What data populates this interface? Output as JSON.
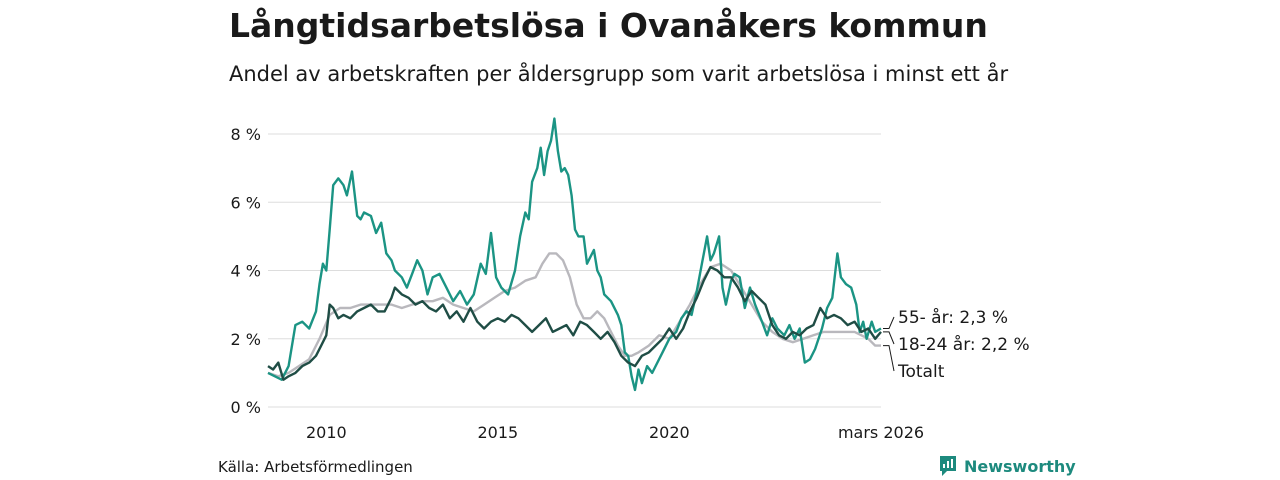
{
  "header": {
    "title": "Långtidsarbetslösa i Ovanåkers kommun",
    "subtitle": "Andel av arbetskraften per åldersgrupp som varit arbetslösa i minst ett år"
  },
  "footer": {
    "source": "Källa: Arbetsförmedlingen",
    "brand": "Newsworthy"
  },
  "colors": {
    "series_55": "#1b9484",
    "series_18_24": "#1f4d45",
    "series_total": "#b9b8bd",
    "grid": "#dddddd",
    "brand": "#1d8a7e"
  },
  "icons": {
    "brand_logo": "newsworthy-logo-icon"
  },
  "chart_data": {
    "type": "line",
    "title": "Långtidsarbetslösa i Ovanåkers kommun",
    "subtitle": "Andel av arbetskraften per åldersgrupp som varit arbetslösa i minst ett år",
    "xlabel": "",
    "ylabel": "",
    "x_range": [
      2008.3,
      2026.17
    ],
    "ylim": [
      0,
      8.5
    ],
    "y_ticks": [
      0,
      2,
      4,
      6,
      8
    ],
    "y_tick_labels": [
      "0 %",
      "2 %",
      "4 %",
      "6 %",
      "8 %"
    ],
    "x_ticks": [
      2010,
      2015,
      2020,
      2026.17
    ],
    "x_tick_labels": [
      "2010",
      "2015",
      "2020",
      "mars 2026"
    ],
    "grid": true,
    "series": [
      {
        "name": "55- år",
        "end_label": "55- år: 2,3 %",
        "color": "#1b9484",
        "points": [
          [
            2008.3,
            1.0
          ],
          [
            2008.5,
            0.9
          ],
          [
            2008.7,
            0.8
          ],
          [
            2008.9,
            1.2
          ],
          [
            2009.1,
            2.4
          ],
          [
            2009.3,
            2.5
          ],
          [
            2009.5,
            2.3
          ],
          [
            2009.7,
            2.8
          ],
          [
            2009.8,
            3.6
          ],
          [
            2009.9,
            4.2
          ],
          [
            2010.0,
            4.0
          ],
          [
            2010.1,
            5.2
          ],
          [
            2010.2,
            6.5
          ],
          [
            2010.35,
            6.7
          ],
          [
            2010.5,
            6.5
          ],
          [
            2010.6,
            6.2
          ],
          [
            2010.75,
            6.9
          ],
          [
            2010.9,
            5.6
          ],
          [
            2011.0,
            5.5
          ],
          [
            2011.1,
            5.7
          ],
          [
            2011.3,
            5.6
          ],
          [
            2011.45,
            5.1
          ],
          [
            2011.6,
            5.4
          ],
          [
            2011.75,
            4.5
          ],
          [
            2011.9,
            4.3
          ],
          [
            2012.0,
            4.0
          ],
          [
            2012.2,
            3.8
          ],
          [
            2012.35,
            3.5
          ],
          [
            2012.5,
            3.9
          ],
          [
            2012.65,
            4.3
          ],
          [
            2012.8,
            4.0
          ],
          [
            2012.95,
            3.3
          ],
          [
            2013.1,
            3.8
          ],
          [
            2013.3,
            3.9
          ],
          [
            2013.5,
            3.5
          ],
          [
            2013.7,
            3.1
          ],
          [
            2013.9,
            3.4
          ],
          [
            2014.1,
            3.0
          ],
          [
            2014.3,
            3.3
          ],
          [
            2014.5,
            4.2
          ],
          [
            2014.65,
            3.9
          ],
          [
            2014.8,
            5.1
          ],
          [
            2014.95,
            3.8
          ],
          [
            2015.1,
            3.5
          ],
          [
            2015.3,
            3.3
          ],
          [
            2015.5,
            4.0
          ],
          [
            2015.65,
            5.0
          ],
          [
            2015.8,
            5.7
          ],
          [
            2015.9,
            5.5
          ],
          [
            2016.0,
            6.6
          ],
          [
            2016.15,
            7.0
          ],
          [
            2016.25,
            7.6
          ],
          [
            2016.35,
            6.8
          ],
          [
            2016.45,
            7.5
          ],
          [
            2016.55,
            7.8
          ],
          [
            2016.65,
            8.45
          ],
          [
            2016.75,
            7.5
          ],
          [
            2016.85,
            6.9
          ],
          [
            2016.95,
            7.0
          ],
          [
            2017.05,
            6.8
          ],
          [
            2017.15,
            6.2
          ],
          [
            2017.25,
            5.2
          ],
          [
            2017.35,
            5.0
          ],
          [
            2017.5,
            5.0
          ],
          [
            2017.6,
            4.2
          ],
          [
            2017.8,
            4.6
          ],
          [
            2017.9,
            4.0
          ],
          [
            2018.0,
            3.8
          ],
          [
            2018.1,
            3.3
          ],
          [
            2018.3,
            3.1
          ],
          [
            2018.5,
            2.7
          ],
          [
            2018.6,
            2.4
          ],
          [
            2018.7,
            1.6
          ],
          [
            2018.8,
            1.5
          ],
          [
            2018.9,
            0.9
          ],
          [
            2019.0,
            0.5
          ],
          [
            2019.1,
            1.1
          ],
          [
            2019.2,
            0.7
          ],
          [
            2019.35,
            1.2
          ],
          [
            2019.5,
            1.0
          ],
          [
            2019.6,
            1.2
          ],
          [
            2019.8,
            1.6
          ],
          [
            2020.0,
            2.0
          ],
          [
            2020.2,
            2.2
          ],
          [
            2020.35,
            2.6
          ],
          [
            2020.5,
            2.8
          ],
          [
            2020.65,
            2.7
          ],
          [
            2020.8,
            3.4
          ],
          [
            2020.95,
            4.2
          ],
          [
            2021.1,
            5.0
          ],
          [
            2021.2,
            4.3
          ],
          [
            2021.3,
            4.5
          ],
          [
            2021.45,
            5.0
          ],
          [
            2021.55,
            3.5
          ],
          [
            2021.65,
            3.0
          ],
          [
            2021.8,
            3.7
          ],
          [
            2021.9,
            3.9
          ],
          [
            2022.05,
            3.8
          ],
          [
            2022.2,
            2.9
          ],
          [
            2022.35,
            3.5
          ],
          [
            2022.5,
            3.0
          ],
          [
            2022.7,
            2.5
          ],
          [
            2022.85,
            2.1
          ],
          [
            2023.0,
            2.6
          ],
          [
            2023.15,
            2.3
          ],
          [
            2023.35,
            2.1
          ],
          [
            2023.5,
            2.4
          ],
          [
            2023.65,
            2.0
          ],
          [
            2023.8,
            2.3
          ],
          [
            2023.95,
            1.3
          ],
          [
            2024.1,
            1.4
          ],
          [
            2024.25,
            1.7
          ],
          [
            2024.45,
            2.3
          ],
          [
            2024.6,
            2.9
          ],
          [
            2024.75,
            3.2
          ],
          [
            2024.9,
            4.5
          ],
          [
            2025.0,
            3.8
          ],
          [
            2025.15,
            3.6
          ],
          [
            2025.3,
            3.5
          ],
          [
            2025.45,
            3.0
          ],
          [
            2025.55,
            2.2
          ],
          [
            2025.65,
            2.5
          ],
          [
            2025.75,
            2.0
          ],
          [
            2025.9,
            2.5
          ],
          [
            2026.0,
            2.2
          ],
          [
            2026.17,
            2.3
          ]
        ]
      },
      {
        "name": "18-24 år",
        "end_label": "18-24 år: 2,2 %",
        "color": "#1f4d45",
        "points": [
          [
            2008.3,
            1.2
          ],
          [
            2008.45,
            1.1
          ],
          [
            2008.6,
            1.3
          ],
          [
            2008.75,
            0.8
          ],
          [
            2008.9,
            0.9
          ],
          [
            2009.1,
            1.0
          ],
          [
            2009.3,
            1.2
          ],
          [
            2009.5,
            1.3
          ],
          [
            2009.7,
            1.5
          ],
          [
            2009.85,
            1.8
          ],
          [
            2010.0,
            2.1
          ],
          [
            2010.1,
            3.0
          ],
          [
            2010.2,
            2.9
          ],
          [
            2010.35,
            2.6
          ],
          [
            2010.5,
            2.7
          ],
          [
            2010.7,
            2.6
          ],
          [
            2010.9,
            2.8
          ],
          [
            2011.1,
            2.9
          ],
          [
            2011.3,
            3.0
          ],
          [
            2011.5,
            2.8
          ],
          [
            2011.7,
            2.8
          ],
          [
            2011.9,
            3.2
          ],
          [
            2012.0,
            3.5
          ],
          [
            2012.2,
            3.3
          ],
          [
            2012.4,
            3.2
          ],
          [
            2012.6,
            3.0
          ],
          [
            2012.8,
            3.1
          ],
          [
            2013.0,
            2.9
          ],
          [
            2013.2,
            2.8
          ],
          [
            2013.4,
            3.0
          ],
          [
            2013.6,
            2.6
          ],
          [
            2013.8,
            2.8
          ],
          [
            2014.0,
            2.5
          ],
          [
            2014.2,
            2.9
          ],
          [
            2014.4,
            2.5
          ],
          [
            2014.6,
            2.3
          ],
          [
            2014.8,
            2.5
          ],
          [
            2015.0,
            2.6
          ],
          [
            2015.2,
            2.5
          ],
          [
            2015.4,
            2.7
          ],
          [
            2015.6,
            2.6
          ],
          [
            2015.8,
            2.4
          ],
          [
            2016.0,
            2.2
          ],
          [
            2016.2,
            2.4
          ],
          [
            2016.4,
            2.6
          ],
          [
            2016.6,
            2.2
          ],
          [
            2016.8,
            2.3
          ],
          [
            2017.0,
            2.4
          ],
          [
            2017.2,
            2.1
          ],
          [
            2017.4,
            2.5
          ],
          [
            2017.6,
            2.4
          ],
          [
            2017.8,
            2.2
          ],
          [
            2018.0,
            2.0
          ],
          [
            2018.2,
            2.2
          ],
          [
            2018.4,
            1.9
          ],
          [
            2018.6,
            1.5
          ],
          [
            2018.8,
            1.3
          ],
          [
            2019.0,
            1.2
          ],
          [
            2019.2,
            1.5
          ],
          [
            2019.4,
            1.6
          ],
          [
            2019.6,
            1.8
          ],
          [
            2019.8,
            2.0
          ],
          [
            2020.0,
            2.3
          ],
          [
            2020.2,
            2.0
          ],
          [
            2020.4,
            2.3
          ],
          [
            2020.6,
            2.8
          ],
          [
            2020.8,
            3.2
          ],
          [
            2021.0,
            3.7
          ],
          [
            2021.2,
            4.1
          ],
          [
            2021.4,
            4.0
          ],
          [
            2021.6,
            3.8
          ],
          [
            2021.8,
            3.8
          ],
          [
            2022.0,
            3.5
          ],
          [
            2022.2,
            3.1
          ],
          [
            2022.4,
            3.4
          ],
          [
            2022.6,
            3.2
          ],
          [
            2022.8,
            3.0
          ],
          [
            2023.0,
            2.4
          ],
          [
            2023.2,
            2.1
          ],
          [
            2023.4,
            2.0
          ],
          [
            2023.6,
            2.2
          ],
          [
            2023.8,
            2.1
          ],
          [
            2024.0,
            2.3
          ],
          [
            2024.2,
            2.4
          ],
          [
            2024.4,
            2.9
          ],
          [
            2024.6,
            2.6
          ],
          [
            2024.8,
            2.7
          ],
          [
            2025.0,
            2.6
          ],
          [
            2025.2,
            2.4
          ],
          [
            2025.4,
            2.5
          ],
          [
            2025.6,
            2.2
          ],
          [
            2025.8,
            2.3
          ],
          [
            2026.0,
            2.0
          ],
          [
            2026.17,
            2.2
          ]
        ]
      },
      {
        "name": "Totalt",
        "end_label": "Totalt",
        "color": "#b9b8bd",
        "points": [
          [
            2008.3,
            1.0
          ],
          [
            2008.6,
            0.9
          ],
          [
            2008.9,
            1.0
          ],
          [
            2009.2,
            1.2
          ],
          [
            2009.5,
            1.4
          ],
          [
            2009.8,
            2.0
          ],
          [
            2010.1,
            2.7
          ],
          [
            2010.4,
            2.9
          ],
          [
            2010.7,
            2.9
          ],
          [
            2011.0,
            3.0
          ],
          [
            2011.3,
            3.0
          ],
          [
            2011.6,
            3.0
          ],
          [
            2011.9,
            3.0
          ],
          [
            2012.2,
            2.9
          ],
          [
            2012.5,
            3.0
          ],
          [
            2012.8,
            3.1
          ],
          [
            2013.1,
            3.1
          ],
          [
            2013.4,
            3.2
          ],
          [
            2013.7,
            3.0
          ],
          [
            2014.0,
            2.9
          ],
          [
            2014.3,
            2.8
          ],
          [
            2014.6,
            3.0
          ],
          [
            2014.9,
            3.2
          ],
          [
            2015.2,
            3.4
          ],
          [
            2015.5,
            3.5
          ],
          [
            2015.8,
            3.7
          ],
          [
            2016.1,
            3.8
          ],
          [
            2016.3,
            4.2
          ],
          [
            2016.5,
            4.5
          ],
          [
            2016.7,
            4.5
          ],
          [
            2016.9,
            4.3
          ],
          [
            2017.1,
            3.8
          ],
          [
            2017.3,
            3.0
          ],
          [
            2017.5,
            2.6
          ],
          [
            2017.7,
            2.6
          ],
          [
            2017.9,
            2.8
          ],
          [
            2018.1,
            2.6
          ],
          [
            2018.3,
            2.2
          ],
          [
            2018.5,
            1.8
          ],
          [
            2018.7,
            1.5
          ],
          [
            2018.9,
            1.5
          ],
          [
            2019.1,
            1.6
          ],
          [
            2019.4,
            1.8
          ],
          [
            2019.7,
            2.1
          ],
          [
            2020.0,
            2.0
          ],
          [
            2020.3,
            2.5
          ],
          [
            2020.6,
            3.0
          ],
          [
            2020.9,
            3.6
          ],
          [
            2021.2,
            4.1
          ],
          [
            2021.5,
            4.2
          ],
          [
            2021.8,
            4.0
          ],
          [
            2022.1,
            3.5
          ],
          [
            2022.4,
            3.0
          ],
          [
            2022.7,
            2.5
          ],
          [
            2023.0,
            2.2
          ],
          [
            2023.3,
            2.0
          ],
          [
            2023.6,
            1.9
          ],
          [
            2023.9,
            2.0
          ],
          [
            2024.2,
            2.1
          ],
          [
            2024.5,
            2.2
          ],
          [
            2024.8,
            2.2
          ],
          [
            2025.1,
            2.2
          ],
          [
            2025.4,
            2.2
          ],
          [
            2025.6,
            2.1
          ],
          [
            2025.8,
            2.0
          ],
          [
            2026.0,
            1.8
          ],
          [
            2026.17,
            1.8
          ]
        ]
      }
    ]
  }
}
